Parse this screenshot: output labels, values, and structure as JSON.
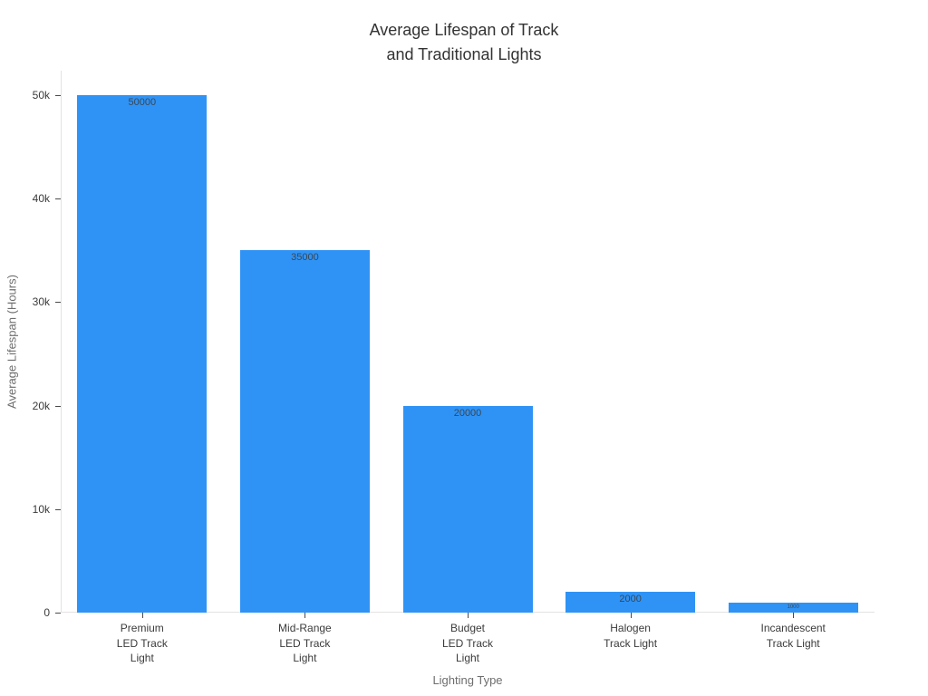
{
  "title": "Average Lifespan of Track\nand Traditional Lights",
  "chart_data": {
    "type": "bar",
    "title": "Average Lifespan of Track and Traditional Lights",
    "xlabel": "Lighting Type",
    "ylabel": "Average Lifespan (Hours)",
    "categories": [
      "Premium\nLED Track\nLight",
      "Mid-Range\nLED Track\nLight",
      "Budget\nLED Track\nLight",
      "Halogen\nTrack Light",
      "Incandescent\nTrack Light"
    ],
    "values": [
      50000,
      35000,
      20000,
      2000,
      1000
    ],
    "bar_labels": [
      "50000",
      "35000",
      "20000",
      "2000",
      "1000"
    ],
    "ylim": [
      0,
      50000
    ],
    "yticks": [
      {
        "value": 0,
        "label": "0"
      },
      {
        "value": 10000,
        "label": "10k"
      },
      {
        "value": 20000,
        "label": "20k"
      },
      {
        "value": 30000,
        "label": "30k"
      },
      {
        "value": 40000,
        "label": "40k"
      },
      {
        "value": 50000,
        "label": "50k"
      }
    ],
    "grid": false,
    "legend": "none",
    "colors": {
      "bar": "#2F93F5",
      "bar_label": "#3a4754",
      "tick_label": "#3b3b3b",
      "axis_title": "#6e6e6e",
      "title": "#333333",
      "axis_line": "#e3e3e3",
      "tick_mark": "#4a4a4a",
      "background": "#ffffff"
    }
  }
}
